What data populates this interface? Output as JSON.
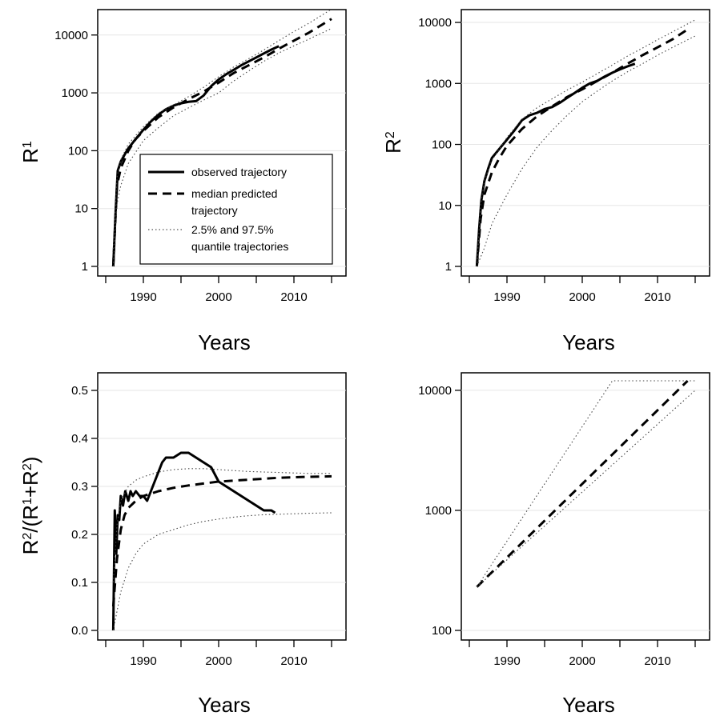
{
  "chart_data": [
    {
      "panel": "top-left",
      "type": "line",
      "scale_y": "log",
      "xlabel": "Years",
      "ylabel_base": "R",
      "ylabel_sup": "1",
      "xlim": [
        1985,
        2015
      ],
      "ylim": [
        1,
        20000
      ],
      "x_ticks": [
        1990,
        2000,
        2010
      ],
      "y_ticks": [
        1,
        10,
        100,
        1000,
        10000
      ],
      "y_tick_labels": [
        "1",
        "10",
        "100",
        "1000",
        "10000"
      ],
      "grid": "horizontal light gray at y ticks",
      "legend": {
        "placement": "bottom-right",
        "entries": [
          {
            "label": "observed trajectory",
            "style": "solid"
          },
          {
            "label": "median predicted",
            "label_cont": "trajectory",
            "style": "dashed"
          },
          {
            "label": "2.5% and 97.5%",
            "label_cont": "quantile trajectories",
            "style": "dotted"
          }
        ]
      },
      "series": [
        {
          "style": "solid",
          "x": [
            1986.0,
            1986.3,
            1986.6,
            1987.0,
            1987.5,
            1988.0,
            1989.0,
            1990.0,
            1991.0,
            1992.0,
            1993.0,
            1994.0,
            1995.0,
            1996.0,
            1997.0,
            1998.0,
            1999.0,
            2000.0,
            2001.0,
            2002.0,
            2003.0,
            2004.0,
            2005.0,
            2006.0,
            2007.0,
            2008.0
          ],
          "y": [
            1,
            8,
            45,
            65,
            85,
            110,
            160,
            230,
            320,
            420,
            520,
            600,
            660,
            700,
            720,
            900,
            1300,
            1700,
            2100,
            2500,
            3000,
            3500,
            4100,
            4800,
            5600,
            6400
          ]
        },
        {
          "style": "dashed",
          "x": [
            1986.0,
            1986.5,
            1987.0,
            1988.0,
            1989.0,
            1990.0,
            1992.0,
            1994.0,
            1996.0,
            1998.0,
            2000.0,
            2002.0,
            2004.0,
            2006.0,
            2008.0,
            2010.0,
            2012.0,
            2015.0
          ],
          "y": [
            1,
            25,
            50,
            100,
            160,
            220,
            380,
            560,
            780,
            1050,
            1500,
            2200,
            3000,
            4100,
            5800,
            8000,
            11000,
            19000
          ]
        },
        {
          "style": "dotted",
          "x": [
            1986.0,
            1986.5,
            1987.0,
            1988.0,
            1990.0,
            1992.0,
            1994.0,
            1996.0,
            1998.0,
            2000.0,
            2002.0,
            2004.0,
            2006.0,
            2008.0,
            2010.0,
            2012.0,
            2015.0
          ],
          "y": [
            1,
            12,
            25,
            60,
            150,
            250,
            400,
            550,
            750,
            1000,
            1600,
            2400,
            3500,
            4900,
            6500,
            8500,
            13000
          ]
        },
        {
          "style": "dotted",
          "x": [
            1986.0,
            1986.5,
            1987.0,
            1988.0,
            1990.0,
            1992.0,
            1994.0,
            1996.0,
            1998.0,
            2000.0,
            2002.0,
            2004.0,
            2006.0,
            2008.0,
            2010.0,
            2012.0,
            2015.0
          ],
          "y": [
            2,
            35,
            70,
            130,
            260,
            450,
            620,
            860,
            1250,
            1900,
            2800,
            3900,
            5500,
            8000,
            11500,
            16000,
            28000
          ]
        }
      ]
    },
    {
      "panel": "top-right",
      "type": "line",
      "scale_y": "log",
      "xlabel": "Years",
      "ylabel_base": "R",
      "ylabel_sup": "2",
      "xlim": [
        1985,
        2015
      ],
      "ylim": [
        1,
        12000
      ],
      "x_ticks": [
        1990,
        2000,
        2010
      ],
      "y_ticks": [
        1,
        10,
        100,
        1000,
        10000
      ],
      "y_tick_labels": [
        "1",
        "10",
        "100",
        "1000",
        "10000"
      ],
      "grid": "horizontal light gray at y ticks",
      "series": [
        {
          "style": "solid",
          "x": [
            1986.0,
            1986.3,
            1986.6,
            1987.0,
            1987.5,
            1988.0,
            1989.0,
            1990.0,
            1991.0,
            1992.0,
            1993.0,
            1994.0,
            1995.0,
            1996.0,
            1997.0,
            1998.0,
            1999.0,
            2000.0,
            2001.0,
            2002.0,
            2003.0,
            2004.0,
            2005.0,
            2006.0,
            2007.0
          ],
          "y": [
            1,
            4,
            12,
            25,
            40,
            60,
            85,
            120,
            170,
            250,
            300,
            330,
            380,
            410,
            480,
            580,
            700,
            850,
            1000,
            1100,
            1300,
            1500,
            1700,
            1900,
            2100
          ]
        },
        {
          "style": "dashed",
          "x": [
            1986.0,
            1986.5,
            1987.0,
            1988.0,
            1989.0,
            1990.0,
            1992.0,
            1994.0,
            1996.0,
            1998.0,
            2000.0,
            2002.0,
            2004.0,
            2006.0,
            2008.0,
            2010.0,
            2012.0,
            2014.0
          ],
          "y": [
            1,
            6,
            15,
            35,
            60,
            95,
            180,
            290,
            420,
            600,
            800,
            1100,
            1500,
            2100,
            2900,
            3900,
            5300,
            7700
          ]
        },
        {
          "style": "dotted",
          "x": [
            1986.0,
            1987.0,
            1988.0,
            1990.0,
            1992.0,
            1994.0,
            1996.0,
            1998.0,
            2000.0,
            2002.0,
            2004.0,
            2006.0,
            2008.0,
            2010.0,
            2012.0,
            2015.0
          ],
          "y": [
            1,
            2,
            5,
            15,
            40,
            90,
            170,
            300,
            500,
            750,
            1100,
            1550,
            2100,
            2900,
            3900,
            6000
          ]
        },
        {
          "style": "dotted",
          "x": [
            1986.0,
            1986.5,
            1987.0,
            1988.0,
            1990.0,
            1992.0,
            1994.0,
            1996.0,
            1998.0,
            2000.0,
            2002.0,
            2004.0,
            2006.0,
            2008.0,
            2010.0,
            2012.0,
            2015.0
          ],
          "y": [
            1,
            10,
            25,
            55,
            130,
            260,
            400,
            560,
            780,
            1050,
            1450,
            2000,
            2800,
            3800,
            5200,
            7000,
            11000
          ]
        }
      ]
    },
    {
      "panel": "bottom-left",
      "type": "line",
      "scale_y": "linear",
      "xlabel": "Years",
      "ylabel_html": "R<tspan baseline-shift='super' font-size='16'>2</tspan>/(R<tspan baseline-shift='super' font-size='16'>1</tspan>+R<tspan baseline-shift='super' font-size='16'>2</tspan>)",
      "ylabel_text": "R2/(R1+R2)",
      "xlim": [
        1985,
        2015
      ],
      "ylim": [
        0,
        0.52
      ],
      "x_ticks": [
        1990,
        2000,
        2010
      ],
      "y_ticks": [
        0.0,
        0.1,
        0.2,
        0.3,
        0.4,
        0.5
      ],
      "y_tick_labels": [
        "0.0",
        "0.1",
        "0.2",
        "0.3",
        "0.4",
        "0.5"
      ],
      "grid": "horizontal light gray at y ticks",
      "series": [
        {
          "style": "solid",
          "x": [
            1986.0,
            1986.2,
            1986.4,
            1986.6,
            1986.8,
            1987.0,
            1987.3,
            1987.6,
            1988.0,
            1988.3,
            1988.6,
            1989.0,
            1989.5,
            1990.0,
            1990.5,
            1991.0,
            1992.0,
            1992.5,
            1993.0,
            1994.0,
            1995.0,
            1996.0,
            1997.0,
            1998.0,
            1999.0,
            2000.0,
            2001.0,
            2002.0,
            2003.0,
            2004.0,
            2005.0,
            2006.0,
            2007.0,
            2007.5
          ],
          "y": [
            0.0,
            0.25,
            0.16,
            0.24,
            0.23,
            0.28,
            0.26,
            0.29,
            0.27,
            0.29,
            0.28,
            0.29,
            0.28,
            0.28,
            0.27,
            0.29,
            0.33,
            0.35,
            0.36,
            0.36,
            0.37,
            0.37,
            0.36,
            0.35,
            0.34,
            0.31,
            0.3,
            0.29,
            0.28,
            0.27,
            0.26,
            0.25,
            0.25,
            0.245
          ]
        },
        {
          "style": "dashed",
          "x": [
            1986.0,
            1986.5,
            1987.0,
            1987.5,
            1988.0,
            1989.0,
            1990.0,
            1992.0,
            1994.0,
            1996.0,
            1998.0,
            2000.0,
            2002.0,
            2004.0,
            2006.0,
            2008.0,
            2010.0,
            2012.0,
            2015.0
          ],
          "y": [
            0.05,
            0.15,
            0.21,
            0.24,
            0.255,
            0.27,
            0.28,
            0.29,
            0.297,
            0.302,
            0.306,
            0.31,
            0.312,
            0.314,
            0.316,
            0.318,
            0.319,
            0.32,
            0.321
          ]
        },
        {
          "style": "dotted",
          "x": [
            1986.0,
            1987.0,
            1988.0,
            1989.0,
            1990.0,
            1992.0,
            1994.0,
            1996.0,
            1998.0,
            2000.0,
            2002.0,
            2004.0,
            2006.0,
            2008.0,
            2010.0,
            2012.0,
            2015.0
          ],
          "y": [
            0.0,
            0.08,
            0.13,
            0.16,
            0.18,
            0.2,
            0.21,
            0.22,
            0.227,
            0.232,
            0.236,
            0.239,
            0.241,
            0.242,
            0.243,
            0.244,
            0.245
          ]
        },
        {
          "style": "dotted",
          "x": [
            1986.0,
            1986.5,
            1987.0,
            1988.0,
            1989.0,
            1990.0,
            1992.0,
            1994.0,
            1996.0,
            1998.0,
            2000.0,
            2002.0,
            2004.0,
            2006.0,
            2008.0,
            2010.0,
            2012.0,
            2015.0
          ],
          "y": [
            0.1,
            0.22,
            0.27,
            0.3,
            0.313,
            0.32,
            0.33,
            0.335,
            0.337,
            0.337,
            0.335,
            0.333,
            0.331,
            0.33,
            0.329,
            0.328,
            0.327,
            0.327
          ]
        }
      ]
    },
    {
      "panel": "bottom-right",
      "type": "line",
      "scale_y": "log",
      "xlabel": "Years",
      "xlim": [
        1985,
        2015
      ],
      "ylim": [
        100,
        12000
      ],
      "x_ticks": [
        1990,
        2000,
        2010
      ],
      "y_ticks": [
        100,
        1000,
        10000
      ],
      "y_tick_labels": [
        "100",
        "1000",
        "10000"
      ],
      "grid": "horizontal light gray at y ticks",
      "series": [
        {
          "style": "dashed",
          "x": [
            1986.0,
            2014.0
          ],
          "y": [
            230,
            12000
          ]
        },
        {
          "style": "dotted",
          "x": [
            1986.0,
            2004.0,
            2015.0
          ],
          "y": [
            230,
            12000,
            12000
          ]
        },
        {
          "style": "dotted",
          "x": [
            1986.0,
            2015.0
          ],
          "y": [
            230,
            10000
          ]
        }
      ]
    }
  ]
}
